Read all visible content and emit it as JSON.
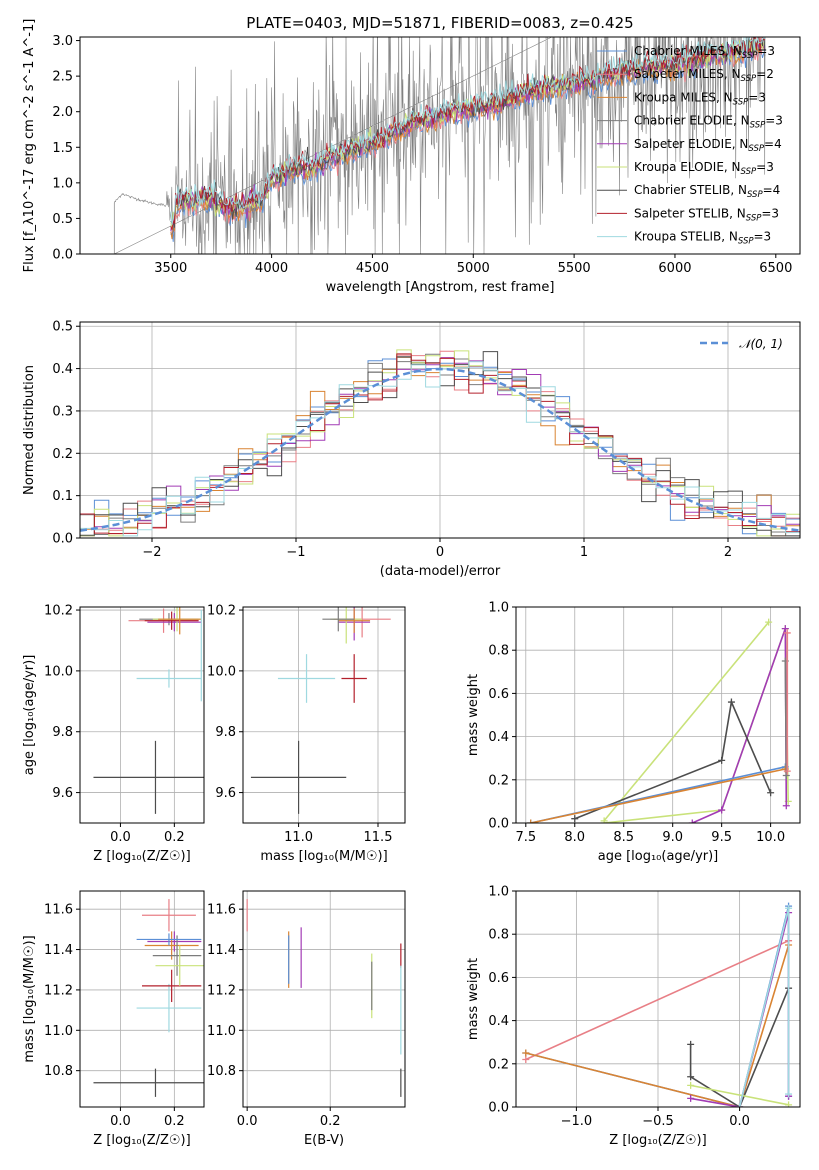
{
  "figure_title": "PLATE=0403, MJD=51871, FIBERID=0083, z=0.425",
  "colors": {
    "chabrier_miles": "#5b8fd6",
    "salpeter_miles": "#e87f86",
    "kroupa_miles": "#d98433",
    "chabrier_elodie": "#7c7c7c",
    "salpeter_elodie": "#a23bb5",
    "kroupa_elodie": "#c9e27a",
    "chabrier_stelib": "#4d4d4d",
    "salpeter_stelib": "#b3202c",
    "kroupa_stelib": "#9fd9e0",
    "data": "#808080",
    "normal": "#5b8fd6"
  },
  "chart_data": [
    {
      "id": "spectrum",
      "type": "line",
      "xlabel": "wavelength [Angstrom, rest frame]",
      "ylabel": "Flux [f_λ10^-17 erg cm^-2 s^-1 A^-1]",
      "xlim": [
        3050,
        6620
      ],
      "ylim": [
        0,
        3.05
      ],
      "xticks": [
        "3500",
        "4000",
        "4500",
        "5000",
        "5500",
        "6000",
        "6500"
      ],
      "yticks": [
        "0.0",
        "0.5",
        "1.0",
        "1.5",
        "2.0",
        "2.5",
        "3.0"
      ],
      "grid": false,
      "legend_position": "right",
      "legend": [
        {
          "label": "Chabrier MILES, N",
          "sub": "SSP",
          "n": "=3",
          "color": "chabrier_miles"
        },
        {
          "label": "Salpeter MILES, N",
          "sub": "SSP",
          "n": "=2",
          "color": "salpeter_miles"
        },
        {
          "label": "Kroupa MILES, N",
          "sub": "SSP",
          "n": "=3",
          "color": "kroupa_miles"
        },
        {
          "label": "Chabrier ELODIE, N",
          "sub": "SSP",
          "n": "=3",
          "color": "chabrier_elodie"
        },
        {
          "label": "Salpeter ELODIE, N",
          "sub": "SSP",
          "n": "=4",
          "color": "salpeter_elodie"
        },
        {
          "label": "Kroupa ELODIE, N",
          "sub": "SSP",
          "n": "=3",
          "color": "kroupa_elodie"
        },
        {
          "label": "Chabrier STELIB, N",
          "sub": "SSP",
          "n": "=4",
          "color": "chabrier_stelib"
        },
        {
          "label": "Salpeter STELIB, N",
          "sub": "SSP",
          "n": "=3",
          "color": "salpeter_stelib"
        },
        {
          "label": "Kroupa STELIB, N",
          "sub": "SSP",
          "n": "=3",
          "color": "kroupa_stelib"
        }
      ],
      "continuum": [
        [
          3220,
          0.72
        ],
        [
          3260,
          0.85
        ],
        [
          3300,
          0.8
        ],
        [
          3400,
          0.72
        ],
        [
          3480,
          0.68
        ],
        [
          3600,
          0.75
        ],
        [
          3700,
          0.78
        ],
        [
          3800,
          0.62
        ],
        [
          3900,
          0.7
        ],
        [
          3950,
          0.75
        ],
        [
          4000,
          1.05
        ],
        [
          4100,
          1.2
        ],
        [
          4200,
          1.2
        ],
        [
          4300,
          1.35
        ],
        [
          4400,
          1.45
        ],
        [
          4500,
          1.55
        ],
        [
          4600,
          1.7
        ],
        [
          4700,
          1.85
        ],
        [
          4800,
          1.9
        ],
        [
          4900,
          2.0
        ],
        [
          5000,
          2.05
        ],
        [
          5100,
          2.1
        ],
        [
          5200,
          2.2
        ],
        [
          5300,
          2.3
        ],
        [
          5400,
          2.35
        ],
        [
          5500,
          2.4
        ],
        [
          5600,
          2.45
        ],
        [
          5700,
          2.55
        ],
        [
          5800,
          2.6
        ],
        [
          5900,
          2.65
        ],
        [
          6000,
          2.65
        ],
        [
          6100,
          2.72
        ],
        [
          6200,
          2.8
        ],
        [
          6300,
          2.85
        ],
        [
          6400,
          2.92
        ],
        [
          6450,
          2.95
        ]
      ],
      "data_range": [
        3220,
        6450
      ],
      "model_range": [
        3500,
        6450
      ]
    },
    {
      "id": "residuals",
      "type": "line",
      "xlabel": "(data-model)/error",
      "ylabel": "Normed distribution",
      "xlim": [
        -2.5,
        2.5
      ],
      "ylim": [
        0,
        0.51
      ],
      "xticks": [
        "−2",
        "−1",
        "0",
        "1",
        "2"
      ],
      "yticks": [
        "0.0",
        "0.1",
        "0.2",
        "0.3",
        "0.4",
        "0.5"
      ],
      "grid": true,
      "legend_position": "top-right",
      "legend": [
        {
          "label": "𝒩(0, 1)",
          "style": "dashed",
          "color": "normal"
        }
      ],
      "bin_width": 0.1
    },
    {
      "id": "age_vs_z",
      "type": "scatter",
      "xlabel": "Z [log₁₀(Z/Z☉)]",
      "ylabel": "age  [log₁₀(age/yr)]",
      "xlim": [
        -0.15,
        0.31
      ],
      "ylim": [
        9.5,
        10.21
      ],
      "xticks": [
        "0.0",
        "0.2"
      ],
      "yticks": [
        "9.6",
        "9.8",
        "10.0",
        "10.2"
      ],
      "grid": true,
      "points": [
        {
          "x": 0.13,
          "xerr": 0.23,
          "y": 9.65,
          "yerr": 0.12,
          "color": "chabrier_stelib"
        },
        {
          "x": 0.18,
          "xerr": 0.12,
          "y": 9.975,
          "yerr": 0.03,
          "color": "kroupa_stelib"
        },
        {
          "x": 0.16,
          "xerr": 0.13,
          "y": 10.165,
          "yerr": 0.04,
          "color": "salpeter_miles"
        },
        {
          "x": 0.18,
          "xerr": 0.11,
          "y": 10.17,
          "yerr": 0.02,
          "color": "chabrier_elodie"
        },
        {
          "x": 0.2,
          "xerr": 0.1,
          "y": 10.16,
          "yerr": 0.03,
          "color": "salpeter_elodie"
        },
        {
          "x": 0.21,
          "xerr": 0.09,
          "y": 10.17,
          "yerr": 0.04,
          "color": "kroupa_elodie"
        },
        {
          "x": 0.19,
          "xerr": 0.1,
          "y": 10.165,
          "yerr": 0.03,
          "color": "salpeter_stelib"
        },
        {
          "x": 0.22,
          "xerr": 0.08,
          "y": 10.17,
          "yerr": 0.05,
          "color": "kroupa_miles"
        },
        {
          "x": 0.3,
          "xerr": 0.0,
          "y": 10.05,
          "yerr": 0.15,
          "color": "kroupa_stelib"
        }
      ]
    },
    {
      "id": "age_vs_mass",
      "type": "scatter",
      "xlabel": "mass [log₁₀(M/M☉)]",
      "ylabel": "",
      "xlim": [
        10.65,
        11.67
      ],
      "ylim": [
        9.5,
        10.21
      ],
      "xticks": [
        "11.0",
        "11.5"
      ],
      "yticks": [
        "9.6",
        "9.8",
        "10.0",
        "10.2"
      ],
      "grid": true,
      "points": [
        {
          "x": 11.0,
          "xerr": 0.3,
          "y": 9.65,
          "yerr": 0.12,
          "color": "chabrier_stelib"
        },
        {
          "x": 11.05,
          "xerr": 0.18,
          "y": 9.975,
          "yerr": 0.08,
          "color": "kroupa_stelib"
        },
        {
          "x": 11.35,
          "xerr": 0.08,
          "y": 9.975,
          "yerr": 0.08,
          "color": "salpeter_stelib"
        },
        {
          "x": 11.4,
          "xerr": 0.18,
          "y": 10.17,
          "yerr": 0.06,
          "color": "salpeter_miles"
        },
        {
          "x": 11.35,
          "xerr": 0.1,
          "y": 10.16,
          "yerr": 0.06,
          "color": "salpeter_elodie"
        },
        {
          "x": 11.3,
          "xerr": 0.1,
          "y": 10.17,
          "yerr": 0.08,
          "color": "kroupa_elodie"
        },
        {
          "x": 11.35,
          "xerr": 0.1,
          "y": 10.165,
          "yerr": 0.04,
          "color": "kroupa_miles"
        },
        {
          "x": 11.25,
          "xerr": 0.1,
          "y": 10.17,
          "yerr": 0.04,
          "color": "chabrier_elodie"
        }
      ]
    },
    {
      "id": "weight_vs_age",
      "type": "line",
      "xlabel": "age  [log₁₀(age/yr)]",
      "ylabel": "mass weight",
      "xlim": [
        7.4,
        10.3
      ],
      "ylim": [
        0,
        1
      ],
      "xticks": [
        "7.5",
        "8.0",
        "8.5",
        "9.0",
        "9.5",
        "10.0"
      ],
      "yticks": [
        "0.0",
        "0.2",
        "0.4",
        "0.6",
        "0.8",
        "1.0"
      ],
      "grid": true,
      "series": [
        {
          "color": "kroupa_elodie",
          "points": [
            [
              8.3,
              0
            ],
            [
              9.5,
              0.06
            ],
            [
              10.15,
              0.9
            ],
            [
              10.18,
              0.1
            ]
          ]
        },
        {
          "color": "kroupa_elodie",
          "points": [
            [
              8.3,
              0.01
            ],
            [
              9.98,
              0.93
            ]
          ]
        },
        {
          "color": "salpeter_elodie",
          "points": [
            [
              9.2,
              0
            ],
            [
              9.5,
              0.06
            ],
            [
              10.15,
              0.9
            ],
            [
              10.16,
              0.08
            ]
          ]
        },
        {
          "color": "chabrier_stelib",
          "points": [
            [
              8.0,
              0.02
            ],
            [
              9.5,
              0.29
            ],
            [
              9.6,
              0.56
            ],
            [
              10.0,
              0.14
            ]
          ]
        },
        {
          "color": "chabrier_miles",
          "points": [
            [
              7.55,
              0
            ],
            [
              10.15,
              0.26
            ]
          ]
        },
        {
          "color": "kroupa_miles",
          "points": [
            [
              7.55,
              0
            ],
            [
              10.15,
              0.25
            ]
          ]
        },
        {
          "color": "chabrier_elodie",
          "points": [
            [
              10.15,
              0.75
            ],
            [
              10.16,
              0.22
            ]
          ]
        },
        {
          "color": "salpeter_miles",
          "points": [
            [
              10.17,
              0.88
            ],
            [
              10.17,
              0.24
            ]
          ]
        }
      ]
    },
    {
      "id": "mass_vs_z",
      "type": "scatter",
      "xlabel": "Z [log₁₀(Z/Z☉)]",
      "ylabel": "mass [log₁₀(M/M☉)]",
      "xlim": [
        -0.15,
        0.31
      ],
      "ylim": [
        10.62,
        11.69
      ],
      "xticks": [
        "0.0",
        "0.2"
      ],
      "yticks": [
        "10.8",
        "11.0",
        "11.2",
        "11.4",
        "11.6"
      ],
      "grid": true,
      "points": [
        {
          "x": 0.13,
          "xerr": 0.23,
          "y": 10.74,
          "yerr": 0.07,
          "color": "chabrier_stelib"
        },
        {
          "x": 0.18,
          "xerr": 0.12,
          "y": 11.11,
          "yerr": 0.12,
          "color": "kroupa_stelib"
        },
        {
          "x": 0.19,
          "xerr": 0.11,
          "y": 11.22,
          "yerr": 0.08,
          "color": "salpeter_stelib"
        },
        {
          "x": 0.18,
          "xerr": 0.1,
          "y": 11.57,
          "yerr": 0.08,
          "color": "salpeter_miles"
        },
        {
          "x": 0.2,
          "xerr": 0.1,
          "y": 11.44,
          "yerr": 0.05,
          "color": "salpeter_elodie"
        },
        {
          "x": 0.19,
          "xerr": 0.1,
          "y": 11.42,
          "yerr": 0.07,
          "color": "kroupa_miles"
        },
        {
          "x": 0.21,
          "xerr": 0.09,
          "y": 11.37,
          "yerr": 0.1,
          "color": "chabrier_elodie"
        },
        {
          "x": 0.22,
          "xerr": 0.09,
          "y": 11.32,
          "yerr": 0.1,
          "color": "kroupa_elodie"
        },
        {
          "x": 0.18,
          "xerr": 0.12,
          "y": 11.45,
          "yerr": 0.03,
          "color": "chabrier_miles"
        }
      ]
    },
    {
      "id": "mass_vs_ebv",
      "type": "scatter",
      "xlabel": "E(B-V)",
      "ylabel": "",
      "xlim": [
        -0.01,
        0.38
      ],
      "ylim": [
        10.62,
        11.69
      ],
      "xticks": [
        "0.0",
        "0.2"
      ],
      "yticks": [
        "10.8",
        "11.0",
        "11.2",
        "11.4",
        "11.6"
      ],
      "grid": true,
      "points": [
        {
          "x": 0.0,
          "y": 11.57,
          "yerr": 0.08,
          "color": "salpeter_miles"
        },
        {
          "x": 0.1,
          "y": 11.35,
          "yerr": 0.14,
          "color": "kroupa_miles"
        },
        {
          "x": 0.1,
          "y": 11.35,
          "yerr": 0.12,
          "color": "chabrier_miles"
        },
        {
          "x": 0.13,
          "y": 11.36,
          "yerr": 0.15,
          "color": "salpeter_elodie"
        },
        {
          "x": 0.3,
          "y": 11.22,
          "yerr": 0.16,
          "color": "kroupa_elodie"
        },
        {
          "x": 0.3,
          "y": 11.22,
          "yerr": 0.12,
          "color": "chabrier_elodie"
        },
        {
          "x": 0.37,
          "y": 11.37,
          "yerr": 0.06,
          "color": "salpeter_stelib"
        },
        {
          "x": 0.37,
          "y": 11.1,
          "yerr": 0.22,
          "color": "kroupa_stelib"
        },
        {
          "x": 0.37,
          "y": 10.74,
          "yerr": 0.07,
          "color": "chabrier_stelib"
        }
      ]
    },
    {
      "id": "weight_vs_z",
      "type": "line",
      "xlabel": "Z [log₁₀(Z/Z☉)]",
      "ylabel": "mass weight",
      "xlim": [
        -1.37,
        0.37
      ],
      "ylim": [
        0,
        1
      ],
      "xticks": [
        "−1.0",
        "−0.5",
        "0.0"
      ],
      "yticks": [
        "0.0",
        "0.2",
        "0.4",
        "0.6",
        "0.8",
        "1.0"
      ],
      "grid": true,
      "series": [
        {
          "color": "salpeter_miles",
          "points": [
            [
              -1.31,
              0.22
            ],
            [
              0.3,
              0.77
            ]
          ]
        },
        {
          "color": "chabrier_miles",
          "points": [
            [
              -1.31,
              0.25
            ],
            [
              0.0,
              0.0
            ],
            [
              0.3,
              0.93
            ],
            [
              0.3,
              0.05
            ]
          ]
        },
        {
          "color": "kroupa_miles",
          "points": [
            [
              -1.31,
              0.25
            ],
            [
              0.0,
              0.0
            ],
            [
              0.3,
              0.75
            ]
          ]
        },
        {
          "color": "chabrier_stelib",
          "points": [
            [
              -0.3,
              0.29
            ],
            [
              -0.3,
              0.14
            ],
            [
              0.0,
              0.0
            ],
            [
              0.3,
              0.55
            ]
          ]
        },
        {
          "color": "salpeter_elodie",
          "points": [
            [
              -0.3,
              0.04
            ],
            [
              0.0,
              0.0
            ],
            [
              0.3,
              0.9
            ],
            [
              0.3,
              0.05
            ]
          ]
        },
        {
          "color": "kroupa_elodie",
          "points": [
            [
              -0.3,
              0.1
            ],
            [
              0.3,
              0.01
            ]
          ]
        },
        {
          "color": "kroupa_stelib",
          "points": [
            [
              0.0,
              0.0
            ],
            [
              0.3,
              0.92
            ],
            [
              0.3,
              0.06
            ]
          ]
        }
      ]
    }
  ]
}
